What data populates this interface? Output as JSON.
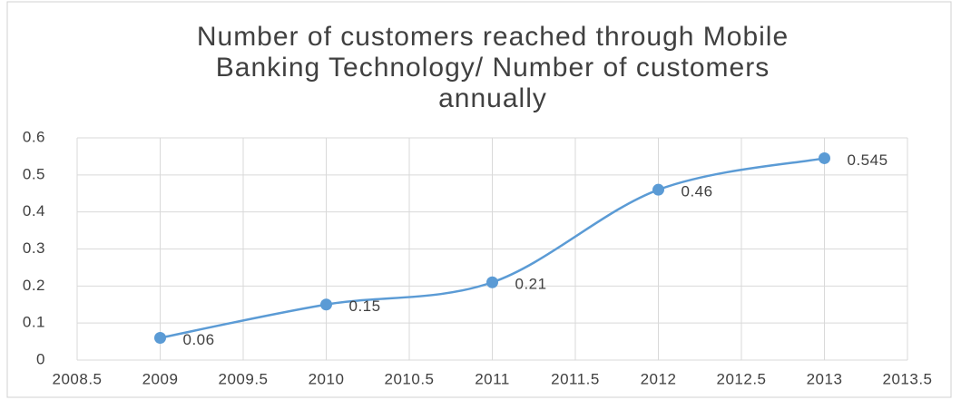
{
  "chart_data": {
    "type": "scatter_smooth",
    "title": "Number of customers reached through Mobile Banking Technology/ Number of customers annually",
    "x": [
      2009,
      2010,
      2011,
      2012,
      2013
    ],
    "values": [
      0.06,
      0.15,
      0.21,
      0.46,
      0.545
    ],
    "color": "#5b9bd5",
    "xlim": [
      2008.5,
      2013.5
    ],
    "xticks": [
      2008.5,
      2009,
      2009.5,
      2010,
      2010.5,
      2011,
      2011.5,
      2012,
      2012.5,
      2013,
      2013.5
    ],
    "ylim": [
      0,
      0.6
    ],
    "yticks": [
      0,
      0.1,
      0.2,
      0.3,
      0.4,
      0.5,
      0.6
    ],
    "grid": true
  }
}
